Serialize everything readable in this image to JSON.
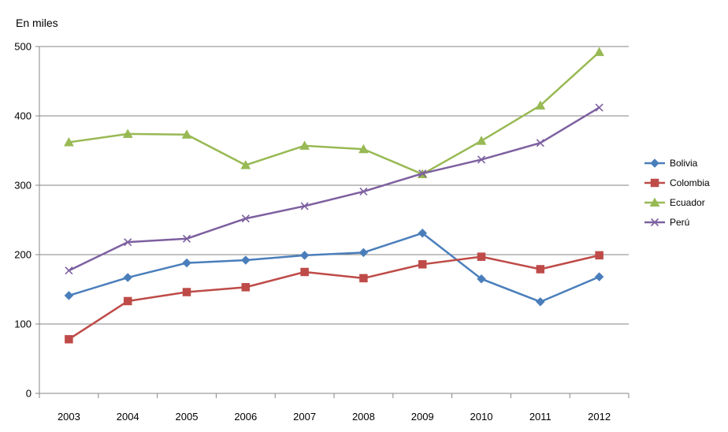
{
  "chart_data": {
    "type": "line",
    "ylabel": "En miles",
    "categories": [
      "2003",
      "2004",
      "2005",
      "2006",
      "2007",
      "2008",
      "2009",
      "2010",
      "2011",
      "2012"
    ],
    "ylim": [
      0,
      500
    ],
    "yticks": [
      0,
      100,
      200,
      300,
      400,
      500
    ],
    "grid": true,
    "legend_position": "right",
    "series": [
      {
        "name": "Bolivia",
        "color": "#4a7ebb",
        "marker": "diamond",
        "values": [
          141,
          167,
          188,
          192,
          199,
          203,
          231,
          165,
          132,
          168
        ]
      },
      {
        "name": "Colombia",
        "color": "#be4b48",
        "marker": "square",
        "values": [
          78,
          133,
          146,
          153,
          175,
          166,
          186,
          197,
          179,
          199
        ]
      },
      {
        "name": "Ecuador",
        "color": "#98b954",
        "marker": "triangle",
        "values": [
          362,
          374,
          373,
          329,
          357,
          352,
          316,
          364,
          415,
          492
        ]
      },
      {
        "name": "Perú",
        "color": "#7d60a0",
        "marker": "x",
        "values": [
          177,
          218,
          223,
          252,
          270,
          291,
          317,
          337,
          361,
          412
        ]
      }
    ]
  }
}
